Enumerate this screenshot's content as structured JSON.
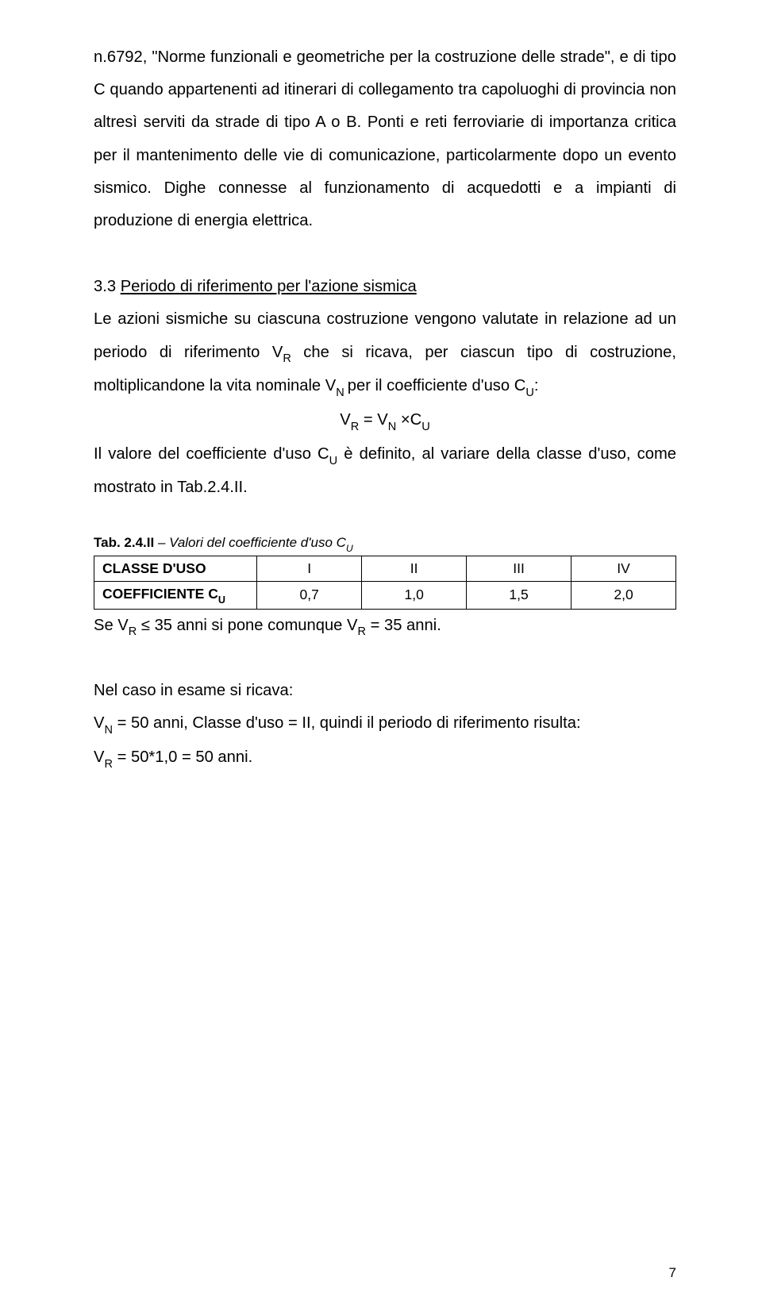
{
  "para1": "n.6792, \"Norme funzionali e geometriche per la costruzione delle strade\", e di tipo C quando appartenenti ad itinerari di collegamento tra capoluoghi di provincia non altresì serviti da strade di tipo A o B. Ponti e reti ferroviarie di importanza critica per il mantenimento delle vie di comunicazione, particolarmente dopo un evento sismico. Dighe connesse al funzionamento di acquedotti e a impianti di produzione di energia elettrica.",
  "heading_num": "3.3 ",
  "heading_text": "Periodo di riferimento per l'azione sismica",
  "para2a": "Le azioni sismiche su ciascuna costruzione vengono valutate in relazione ad un periodo di riferimento V",
  "para2a_sub": "R",
  "para2b": " che si ricava, per ciascun tipo di costruzione, moltiplicandone la vita nominale V",
  "para2b_sub": "N ",
  "para2c": "per il coefficiente d'uso C",
  "para2c_sub": "U",
  "para2d": ":",
  "equation_lhs": "V",
  "equation_sub1": "R",
  "equation_mid": " = V",
  "equation_sub2": "N",
  "equation_mid2": " ×C",
  "equation_sub3": "U",
  "para3a": "Il valore del coefficiente d'uso C",
  "para3a_sub": "U",
  "para3b": " è definito, al variare della classe d'uso, come mostrato in Tab.2.4.II.",
  "table": {
    "caption_bold": "Tab. 2.4.II",
    "caption_italic": " – Valori del coefficiente d'uso C",
    "caption_sub": "U",
    "row1_label": "CLASSE D'USO",
    "row1": [
      "I",
      "II",
      "III",
      "IV"
    ],
    "row2_label_pre": "COEFFICIENTE C",
    "row2_label_sub": "U",
    "row2": [
      "0,7",
      "1,0",
      "1,5",
      "2,0"
    ]
  },
  "para4a": "Se V",
  "para4a_sub": "R",
  "para4b": " ≤ 35 anni si pone comunque V",
  "para4b_sub": "R",
  "para4c": " = 35 anni.",
  "para5": "Nel caso in esame si ricava:",
  "para6a": "V",
  "para6a_sub": "N",
  "para6b": " = 50 anni, Classe d'uso = II, quindi il periodo di riferimento risulta:",
  "para7a": "V",
  "para7a_sub": "R",
  "para7b": " = 50*1,0 = 50 anni.",
  "page_number": "7"
}
